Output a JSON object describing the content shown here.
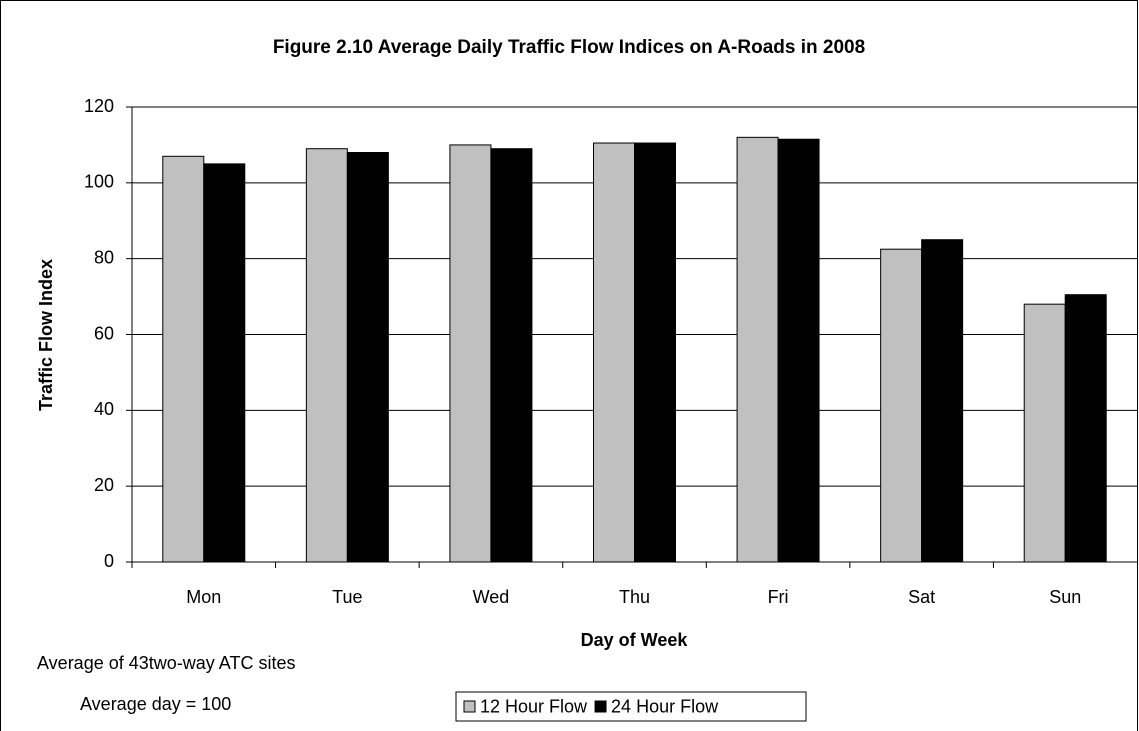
{
  "chart_data": {
    "type": "bar",
    "title": "Figure 2.10 Average Daily Traffic Flow Indices on A-Roads in 2008",
    "x_label": "Day of Week",
    "y_label": "Traffic Flow Index",
    "notes": [
      "Average of 43two-way ATC sites",
      "Average day = 100"
    ],
    "categories": [
      "Mon",
      "Tue",
      "Wed",
      "Thu",
      "Fri",
      "Sat",
      "Sun"
    ],
    "series": [
      {
        "name": "12 Hour Flow",
        "color": "#c0c0c0",
        "values": [
          107,
          109,
          110,
          110.5,
          112,
          82.5,
          68
        ]
      },
      {
        "name": "24 Hour Flow",
        "color": "#000000",
        "values": [
          105,
          108,
          109,
          110.5,
          111.5,
          85,
          70.5
        ]
      }
    ],
    "ylim": [
      0,
      120
    ],
    "yticks": [
      0,
      20,
      40,
      60,
      80,
      100,
      120
    ],
    "grid": true,
    "legend": "bottom"
  }
}
